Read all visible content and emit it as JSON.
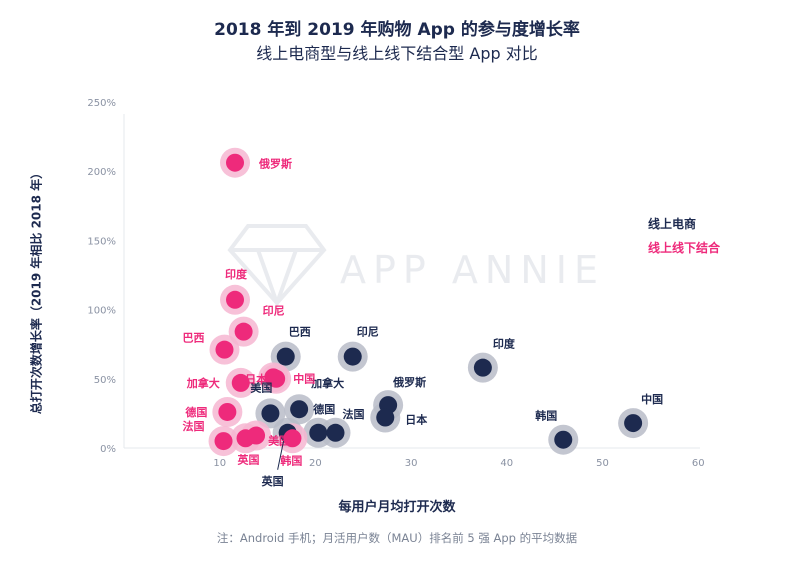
{
  "title": "2018 年到 2019 年购物 App 的参与度增长率",
  "subtitle": "线上电商型与线上线下结合型 App 对比",
  "watermark": "APP ANNIE",
  "note": "注：Android 手机；月活用户数（MAU）排名前 5 强 App 的平均数据",
  "colors": {
    "online": "#1d2a4f",
    "omni": "#ee2a7b",
    "online_halo": "#b8bcc8",
    "omni_halo": "#f6b6d1"
  },
  "chart_data": {
    "type": "scatter",
    "xlabel": "每用户月均打开次数",
    "ylabel": "总打开次数增长率（2019 年相比 2018 年）",
    "xlim": [
      0,
      60
    ],
    "ylim": [
      0,
      250
    ],
    "xticks": [
      "10",
      "20",
      "30",
      "40",
      "50",
      "60"
    ],
    "yticks": [
      "0%",
      "50%",
      "100%",
      "150%",
      "200%",
      "250%"
    ],
    "legend": {
      "position": "right",
      "entries": [
        "线上电商",
        "线上线下结合"
      ]
    },
    "series": [
      {
        "name": "线上电商",
        "points": [
          {
            "label": "中国",
            "x": 53.2,
            "y": 18
          },
          {
            "label": "韩国",
            "x": 45.9,
            "y": 6
          },
          {
            "label": "印度",
            "x": 37.5,
            "y": 58
          },
          {
            "label": "印尼",
            "x": 23.9,
            "y": 66
          },
          {
            "label": "巴西",
            "x": 16.9,
            "y": 66
          },
          {
            "label": "俄罗斯",
            "x": 27.6,
            "y": 31
          },
          {
            "label": "日本",
            "x": 27.3,
            "y": 22
          },
          {
            "label": "加拿大",
            "x": 18.3,
            "y": 28
          },
          {
            "label": "美国",
            "x": 15.3,
            "y": 25
          },
          {
            "label": "德国",
            "x": 20.3,
            "y": 11
          },
          {
            "label": "法国",
            "x": 22.1,
            "y": 11
          },
          {
            "label": "英国",
            "x": 17.1,
            "y": 11
          }
        ]
      },
      {
        "name": "线上线下结合",
        "points": [
          {
            "label": "俄罗斯",
            "x": 11.6,
            "y": 206
          },
          {
            "label": "印度",
            "x": 11.6,
            "y": 107
          },
          {
            "label": "印尼",
            "x": 12.5,
            "y": 84
          },
          {
            "label": "巴西",
            "x": 10.5,
            "y": 71
          },
          {
            "label": "日本",
            "x": 15.9,
            "y": 50
          },
          {
            "label": "中国",
            "x": 15.6,
            "y": 51
          },
          {
            "label": "加拿大",
            "x": 12.2,
            "y": 47
          },
          {
            "label": "德国",
            "x": 10.8,
            "y": 26
          },
          {
            "label": "法国",
            "x": 10.4,
            "y": 5
          },
          {
            "label": "英国",
            "x": 12.7,
            "y": 7
          },
          {
            "label": "美国",
            "x": 13.8,
            "y": 9
          },
          {
            "label": "韩国",
            "x": 17.6,
            "y": 7
          }
        ]
      }
    ]
  }
}
